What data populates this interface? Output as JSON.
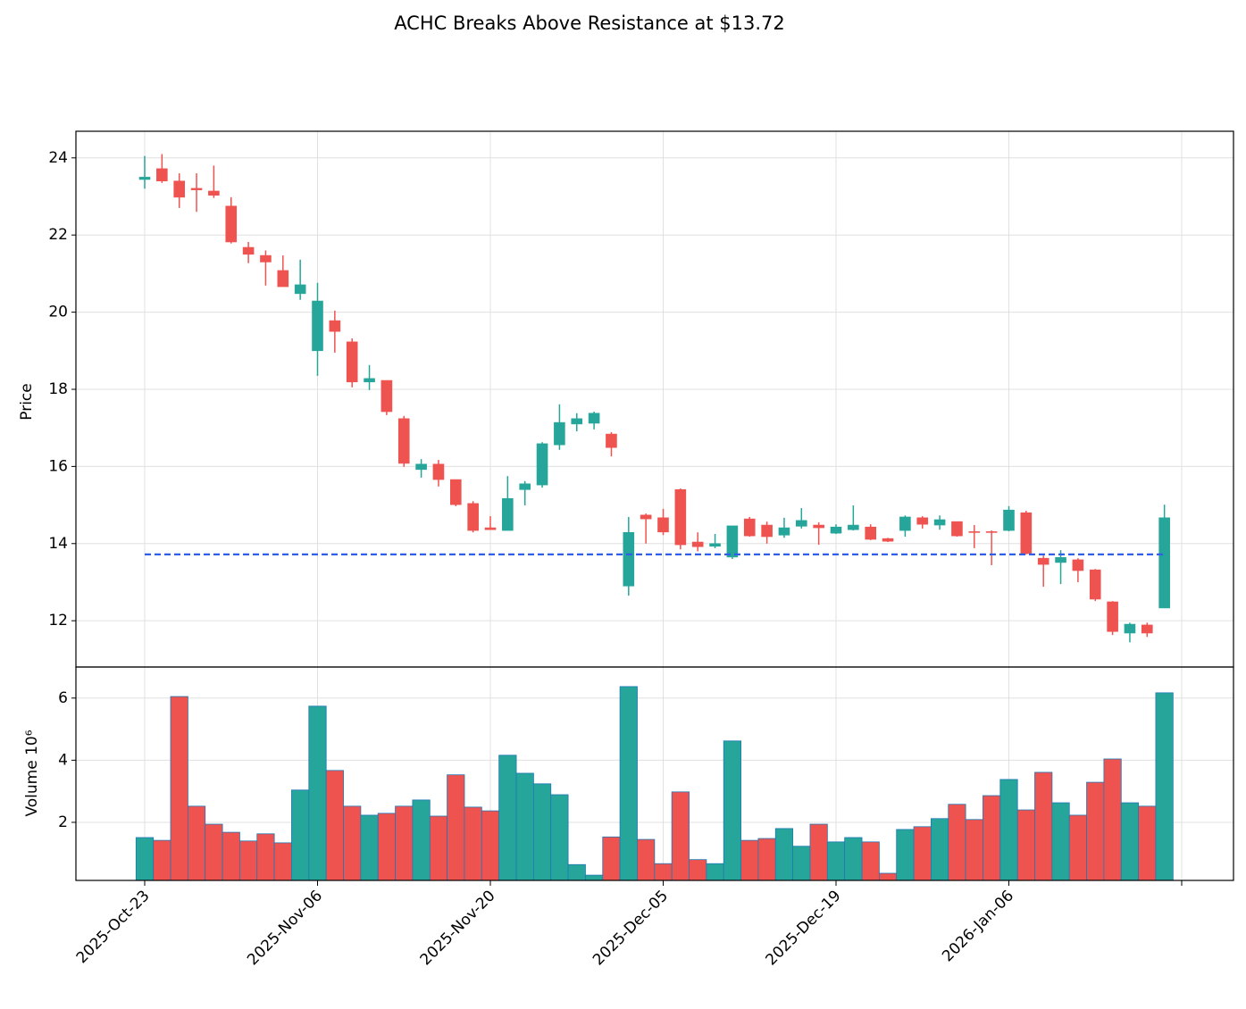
{
  "chart_data": {
    "type": "candlestick",
    "title": "ACHC Breaks Above Resistance at $13.72",
    "y_label": "Price",
    "volume_label": "Volume  10⁶",
    "categories": [
      "2025-Oct-23",
      null,
      null,
      null,
      null,
      null,
      null,
      null,
      null,
      null,
      "2025-Nov-06",
      null,
      null,
      null,
      null,
      null,
      null,
      null,
      null,
      null,
      "2025-Nov-20",
      null,
      null,
      null,
      null,
      null,
      null,
      null,
      null,
      null,
      "2025-Dec-05",
      null,
      null,
      null,
      null,
      null,
      null,
      null,
      null,
      null,
      "2025-Dec-19",
      null,
      null,
      null,
      null,
      null,
      null,
      null,
      null,
      null,
      "2026-Jan-06",
      null,
      null,
      null,
      null,
      null,
      null,
      null,
      null,
      null
    ],
    "open": [
      23.44,
      23.72,
      23.4,
      23.21,
      23.14,
      22.75,
      21.68,
      21.47,
      21.08,
      20.48,
      19.0,
      19.78,
      19.23,
      18.19,
      18.23,
      17.24,
      15.92,
      16.06,
      15.66,
      15.04,
      14.41,
      14.34,
      15.4,
      15.52,
      16.56,
      17.1,
      17.12,
      16.84,
      12.9,
      14.74,
      14.67,
      15.4,
      14.04,
      13.93,
      13.65,
      14.64,
      14.48,
      14.22,
      14.45,
      14.48,
      14.27,
      14.36,
      14.43,
      14.13,
      14.34,
      14.67,
      14.48,
      14.57,
      14.31,
      14.31,
      14.34,
      14.8,
      13.62,
      13.51,
      13.58,
      13.32,
      12.49,
      11.68,
      11.89,
      12.33
    ],
    "high": [
      24.05,
      24.1,
      23.6,
      23.6,
      23.8,
      22.98,
      21.82,
      21.6,
      21.47,
      21.36,
      20.76,
      20.04,
      19.32,
      18.63,
      18.23,
      17.31,
      16.19,
      16.17,
      15.66,
      15.1,
      14.71,
      15.75,
      15.62,
      16.63,
      17.61,
      17.38,
      17.42,
      16.89,
      14.69,
      14.78,
      14.9,
      15.43,
      14.29,
      14.25,
      14.46,
      14.69,
      14.57,
      14.67,
      14.92,
      14.55,
      14.5,
      14.99,
      14.5,
      14.15,
      14.73,
      14.71,
      14.73,
      14.57,
      14.48,
      14.34,
      14.97,
      14.85,
      13.69,
      13.83,
      13.62,
      13.34,
      12.51,
      11.95,
      11.95,
      15.01
    ],
    "low": [
      23.2,
      23.35,
      22.7,
      22.6,
      22.96,
      21.78,
      21.27,
      20.69,
      20.66,
      20.32,
      18.35,
      18.95,
      18.05,
      17.98,
      17.33,
      15.99,
      15.71,
      15.48,
      14.97,
      14.29,
      14.36,
      14.34,
      14.99,
      15.45,
      16.43,
      16.91,
      16.96,
      16.26,
      12.65,
      14.0,
      14.22,
      13.85,
      13.8,
      13.88,
      13.6,
      14.18,
      14.0,
      14.15,
      14.39,
      13.97,
      14.25,
      14.34,
      14.09,
      14.04,
      14.18,
      14.39,
      14.36,
      14.18,
      13.88,
      13.44,
      14.32,
      13.72,
      12.88,
      12.95,
      13.0,
      12.51,
      11.63,
      11.44,
      11.58,
      12.33
    ],
    "close": [
      23.5,
      23.4,
      22.98,
      23.17,
      23.03,
      21.82,
      21.5,
      21.3,
      20.66,
      20.71,
      20.29,
      19.5,
      18.19,
      18.28,
      17.42,
      16.08,
      16.06,
      15.66,
      15.01,
      14.34,
      14.36,
      15.17,
      15.55,
      16.59,
      17.14,
      17.24,
      17.38,
      16.49,
      14.29,
      14.64,
      14.3,
      13.97,
      13.92,
      14.0,
      14.46,
      14.2,
      14.18,
      14.41,
      14.6,
      14.41,
      14.43,
      14.48,
      14.11,
      14.06,
      14.69,
      14.5,
      14.62,
      14.2,
      14.29,
      14.29,
      14.87,
      13.74,
      13.46,
      13.64,
      13.3,
      12.56,
      11.72,
      11.91,
      11.68,
      14.67
    ],
    "volume": [
      1.51,
      1.42,
      6.05,
      2.52,
      1.94,
      1.68,
      1.4,
      1.63,
      1.34,
      3.04,
      5.74,
      3.67,
      2.52,
      2.23,
      2.29,
      2.52,
      2.72,
      2.2,
      3.53,
      2.49,
      2.37,
      4.16,
      3.58,
      3.24,
      2.89,
      0.64,
      0.3,
      1.53,
      6.37,
      1.45,
      0.67,
      2.98,
      0.8,
      0.67,
      4.62,
      1.42,
      1.48,
      1.8,
      1.23,
      1.94,
      1.37,
      1.51,
      1.37,
      0.36,
      1.77,
      1.86,
      2.12,
      2.58,
      2.09,
      2.86,
      3.38,
      2.4,
      3.61,
      2.63,
      2.23,
      3.29,
      4.04,
      2.63,
      2.52,
      6.17
    ],
    "resistance": 13.72,
    "resistance_color": "#2f5ee8",
    "up_color": "#26a69a",
    "down_color": "#ef5350",
    "volume_edge_color": "#1f77b4",
    "ylim": [
      10.8,
      24.69
    ],
    "yticks": [
      12,
      14,
      16,
      18,
      20,
      22,
      24
    ],
    "volume_ylim": [
      0.13,
      7.0
    ],
    "volume_yticks": [
      2,
      4,
      6
    ],
    "grid": true
  }
}
